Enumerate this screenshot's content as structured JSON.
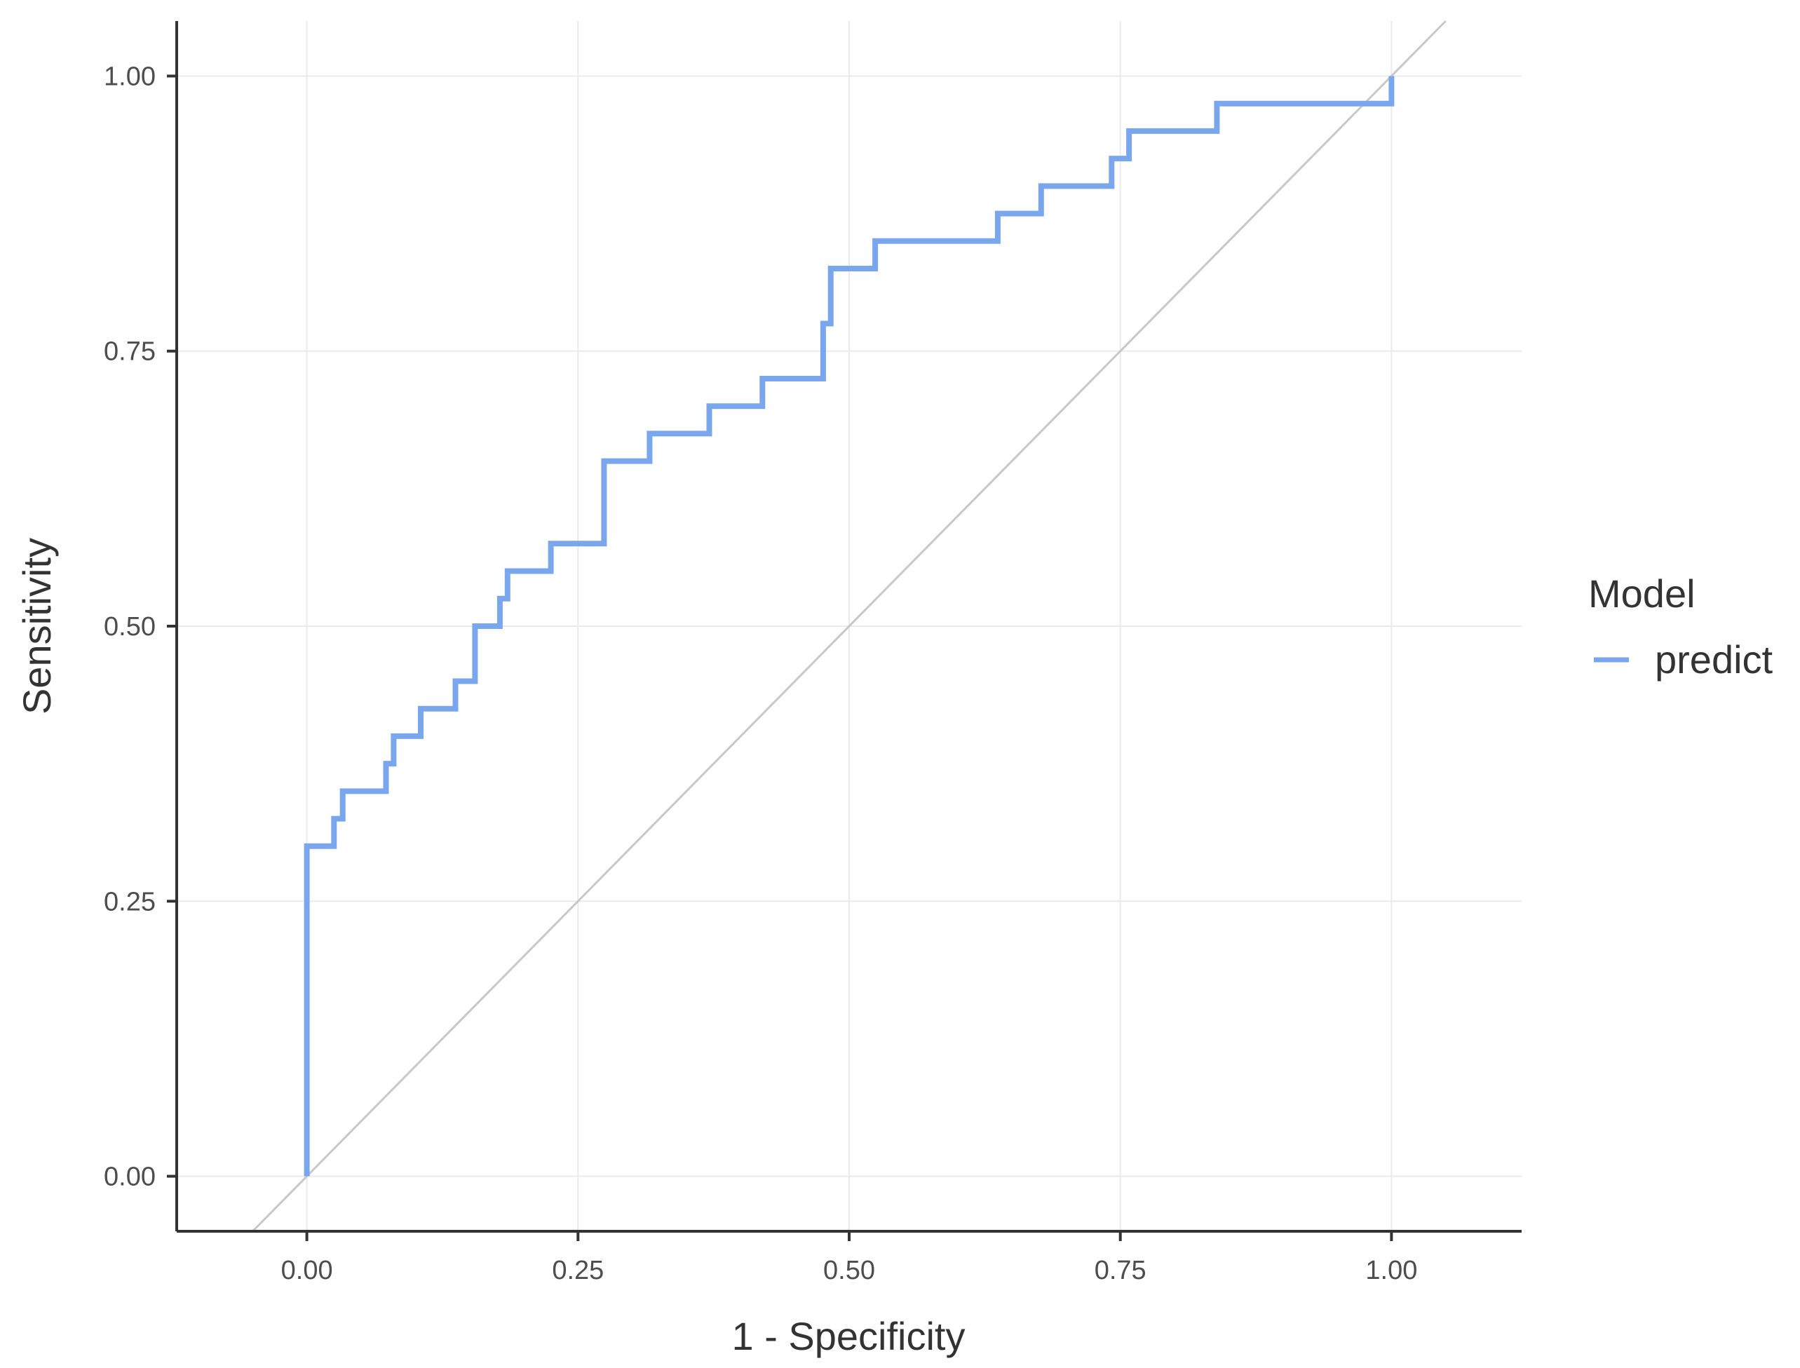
{
  "chart_data": {
    "type": "line",
    "xlabel": "1 - Specificity",
    "ylabel": "Sensitivity",
    "xlim": [
      -0.12,
      1.12
    ],
    "ylim": [
      -0.05,
      1.05
    ],
    "x_ticks": [
      "0.00",
      "0.25",
      "0.50",
      "0.75",
      "1.00"
    ],
    "y_ticks": [
      "0.00",
      "0.25",
      "0.50",
      "0.75",
      "1.00"
    ],
    "x_tick_values": [
      0,
      0.25,
      0.5,
      0.75,
      1.0
    ],
    "y_tick_values": [
      0,
      0.25,
      0.5,
      0.75,
      1.0
    ],
    "grid": true,
    "legend": {
      "title": "Model",
      "position": "right"
    },
    "series": [
      {
        "name": "predict",
        "color": "#7AA6EE",
        "step": true,
        "x": [
          0,
          0,
          0.025,
          0.025,
          0.033,
          0.033,
          0.073,
          0.073,
          0.08,
          0.08,
          0.105,
          0.105,
          0.137,
          0.137,
          0.155,
          0.155,
          0.178,
          0.178,
          0.185,
          0.185,
          0.225,
          0.225,
          0.274,
          0.274,
          0.316,
          0.316,
          0.371,
          0.371,
          0.42,
          0.42,
          0.476,
          0.476,
          0.483,
          0.483,
          0.524,
          0.524,
          0.637,
          0.637,
          0.677,
          0.677,
          0.742,
          0.742,
          0.758,
          0.758,
          0.839,
          0.839,
          1.0,
          1.0
        ],
        "y": [
          0,
          0.3,
          0.3,
          0.325,
          0.325,
          0.35,
          0.35,
          0.375,
          0.375,
          0.4,
          0.4,
          0.425,
          0.425,
          0.45,
          0.45,
          0.5,
          0.5,
          0.525,
          0.525,
          0.55,
          0.55,
          0.575,
          0.575,
          0.65,
          0.65,
          0.675,
          0.675,
          0.7,
          0.7,
          0.725,
          0.725,
          0.775,
          0.775,
          0.825,
          0.825,
          0.85,
          0.85,
          0.875,
          0.875,
          0.9,
          0.9,
          0.925,
          0.925,
          0.95,
          0.95,
          0.975,
          0.975,
          1.0
        ]
      }
    ],
    "reference_line": {
      "x": [
        -0.05,
        1.05
      ],
      "y": [
        -0.05,
        1.05
      ],
      "color": "#c8c8c8"
    }
  }
}
